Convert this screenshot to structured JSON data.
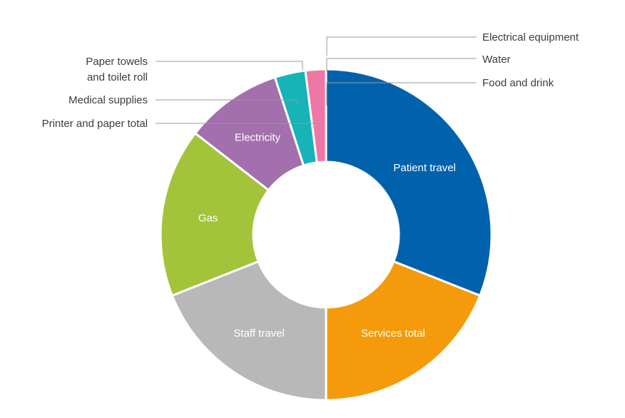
{
  "chart_data": {
    "type": "pie",
    "variant": "donut",
    "legend": "none",
    "series": [
      {
        "slices": [
          {
            "label": "Patient travel",
            "value": 31.0,
            "color": "#0062ac",
            "label_position": "inside"
          },
          {
            "label": "Services total",
            "value": 19.0,
            "color": "#f59b0b",
            "label_position": "inside"
          },
          {
            "label": "Staff travel",
            "value": 19.0,
            "color": "#b8b8b8",
            "label_position": "inside"
          },
          {
            "label": "Gas",
            "value": 16.5,
            "color": "#a3c43a",
            "label_position": "inside"
          },
          {
            "label": "Electricity",
            "value": 9.5,
            "color": "#a36fad",
            "label_position": "inside"
          },
          {
            "label": "Medical supplies",
            "value": 3.0,
            "color": "#16b3b8",
            "label_position": "outside"
          },
          {
            "label": "Paper towels and toilet roll",
            "value": 2.0,
            "color": "#ee77a6",
            "label_position": "outside"
          },
          {
            "label": "Printer and paper total",
            "value": 0.0,
            "color": "#5aa0d8",
            "label_position": "outside"
          },
          {
            "label": "Food and drink",
            "value": 0.0,
            "color": "#d94f2b",
            "label_position": "outside"
          },
          {
            "label": "Water",
            "value": 0.0,
            "color": "#3a8ee0",
            "label_position": "outside"
          },
          {
            "label": "Electrical equipment",
            "value": 0.0,
            "color": "#6c4aa0",
            "label_position": "outside"
          }
        ]
      }
    ],
    "outside_labels": {
      "electrical_equipment": "Electrical equipment",
      "water": "Water",
      "food_and_drink": "Food and drink",
      "paper_towels_line1": "Paper towels",
      "paper_towels_line2": "and toilet roll",
      "medical_supplies": "Medical supplies",
      "printer_and_paper": "Printer and paper total"
    }
  }
}
